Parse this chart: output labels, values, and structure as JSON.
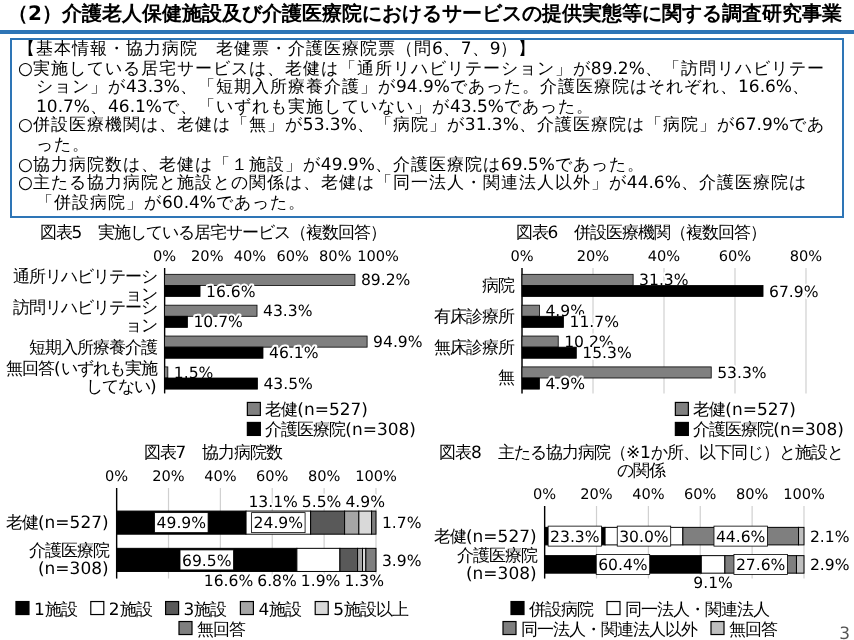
{
  "chart_data": [
    {
      "type": "other",
      "title": "（2）介護老人保健施設及び介護医療院におけるサービスの提供実態等に関する調査研究事業",
      "subtitle": "【基本情報・協力病院　老健票・介護医療院票（問6、7、9）】",
      "annotations": [
        "○実施している居宅サービスは、老健は「通所リハビリテーション」が89.2%、「訪問リハビリテーション」が43.3%、「短期入所療養介護」が94.9%であった。介護医療院はそれぞれ、16.6%、10.7%、46.1%で、「いずれも実施していない」が43.5%であった。",
        "○併設医療機関は、老健は「無」が53.3%、「病院」が31.3%、介護医療院は「病院」が67.9%であった。",
        "○協力病院数は、老健は「１施設」が49.9%、介護医療院は69.5%であった。",
        "○主たる協力病院と施設との関係は、老健は「同一法人・関連法人以外」が44.6%、介護医療院は「併設病院」が60.4%であった。"
      ]
    },
    {
      "type": "bar",
      "orientation": "horizontal",
      "title": "図表5　実施している居宅サービス（複数回答）",
      "categories": [
        "通所リハビリテーション",
        "訪問リハビリテーション",
        "短期入所療養介護",
        "無回答(いずれも実施してない)"
      ],
      "series": [
        {
          "name": "老健(n=527)",
          "color": "#808080",
          "values": [
            89.2,
            43.3,
            94.9,
            1.5
          ],
          "value_labels": [
            "89.2%",
            "43.3%",
            "94.9%",
            "1.5%"
          ]
        },
        {
          "name": "介護医療院(n=308)",
          "color": "#000000",
          "values": [
            16.6,
            10.7,
            46.1,
            43.5
          ],
          "value_labels": [
            "16.6%",
            "10.7%",
            "46.1%",
            "43.5%"
          ]
        }
      ],
      "xlim": [
        0,
        100
      ],
      "xticks": [
        {
          "value": 0,
          "label": "0%"
        },
        {
          "value": 20,
          "label": "20%"
        },
        {
          "value": 40,
          "label": "40%"
        },
        {
          "value": 60,
          "label": "60%"
        },
        {
          "value": 80,
          "label": "80%"
        },
        {
          "value": 100,
          "label": "100%"
        }
      ],
      "legend": "bottom right"
    },
    {
      "type": "bar",
      "orientation": "horizontal",
      "title": "図表6　併設医療機関（複数回答）",
      "categories": [
        "病院",
        "有床診療所",
        "無床診療所",
        "無"
      ],
      "series": [
        {
          "name": "老健(n=527)",
          "color": "#808080",
          "values": [
            31.3,
            4.9,
            10.2,
            53.3
          ],
          "value_labels": [
            "31.3%",
            "4.9%",
            "10.2%",
            "53.3%"
          ]
        },
        {
          "name": "介護医療院(n=308)",
          "color": "#000000",
          "values": [
            67.9,
            11.7,
            15.3,
            4.9
          ],
          "value_labels": [
            "67.9%",
            "11.7%",
            "15.3%",
            "4.9%"
          ]
        }
      ],
      "xlim": [
        0,
        80
      ],
      "xticks": [
        {
          "value": 0,
          "label": "0%"
        },
        {
          "value": 20,
          "label": "20%"
        },
        {
          "value": 40,
          "label": "40%"
        },
        {
          "value": 60,
          "label": "60%"
        },
        {
          "value": 80,
          "label": "80%"
        }
      ],
      "grid": "x",
      "legend": "bottom right"
    },
    {
      "type": "bar",
      "orientation": "horizontal",
      "stacked": true,
      "title": "図表7　協力病院数",
      "categories": [
        "老健(n=527)",
        "介護医療院\n(n=308)"
      ],
      "series": [
        {
          "name": "1施設",
          "color": "#000000",
          "values": [
            49.9,
            69.5
          ],
          "value_labels": [
            "49.9%",
            "69.5%"
          ]
        },
        {
          "name": "2施設",
          "color": "#ffffff",
          "values": [
            24.9,
            16.6
          ],
          "value_labels": [
            "24.9%",
            "16.6%"
          ]
        },
        {
          "name": "3施設",
          "color": "#595959",
          "values": [
            13.1,
            6.8
          ],
          "value_labels": [
            "13.1%",
            "6.8%"
          ]
        },
        {
          "name": "4施設",
          "color": "#a6a6a6",
          "values": [
            5.5,
            1.9
          ],
          "value_labels": [
            "5.5%",
            "1.9%"
          ]
        },
        {
          "name": "5施設以上",
          "color": "#d9d9d9",
          "values": [
            4.9,
            1.3
          ],
          "value_labels": [
            "4.9%",
            "1.3%"
          ]
        },
        {
          "name": "無回答",
          "color": "#7f7f7f",
          "values": [
            1.7,
            3.9
          ],
          "value_labels": [
            "1.7%",
            "3.9%"
          ]
        }
      ],
      "xlim": [
        0,
        100
      ],
      "xticks": [
        {
          "value": 0,
          "label": "0%"
        },
        {
          "value": 20,
          "label": "20%"
        },
        {
          "value": 40,
          "label": "40%"
        },
        {
          "value": 60,
          "label": "60%"
        },
        {
          "value": 80,
          "label": "80%"
        },
        {
          "value": 100,
          "label": "100%"
        }
      ],
      "grid": "x",
      "legend": "bottom"
    },
    {
      "type": "bar",
      "orientation": "horizontal",
      "stacked": true,
      "title": "図表8　主たる協力病院（※1か所、以下同じ）と施設との関係",
      "categories": [
        "老健(n=527)",
        "介護医療院\n(n=308)"
      ],
      "series": [
        {
          "name": "併設病院",
          "color": "#000000",
          "values": [
            23.3,
            60.4
          ],
          "value_labels": [
            "23.3%",
            "60.4%"
          ]
        },
        {
          "name": "同一法人・関連法人",
          "color": "#ffffff",
          "values": [
            30.0,
            9.1
          ],
          "value_labels": [
            "30.0%",
            "9.1%"
          ]
        },
        {
          "name": "同一法人・関連法人以外",
          "color": "#7f7f7f",
          "values": [
            44.6,
            27.6
          ],
          "value_labels": [
            "44.6%",
            "27.6%"
          ]
        },
        {
          "name": "無回答",
          "color": "#bfbfbf",
          "values": [
            2.1,
            2.9
          ],
          "value_labels": [
            "2.1%",
            "2.9%"
          ]
        }
      ],
      "xlim": [
        0,
        100
      ],
      "xticks": [
        {
          "value": 0,
          "label": "0%"
        },
        {
          "value": 20,
          "label": "20%"
        },
        {
          "value": 40,
          "label": "40%"
        },
        {
          "value": 60,
          "label": "60%"
        },
        {
          "value": 80,
          "label": "80%"
        },
        {
          "value": 100,
          "label": "100%"
        }
      ],
      "grid": "x",
      "legend": "bottom",
      "annotations": [
        "3"
      ]
    }
  ]
}
